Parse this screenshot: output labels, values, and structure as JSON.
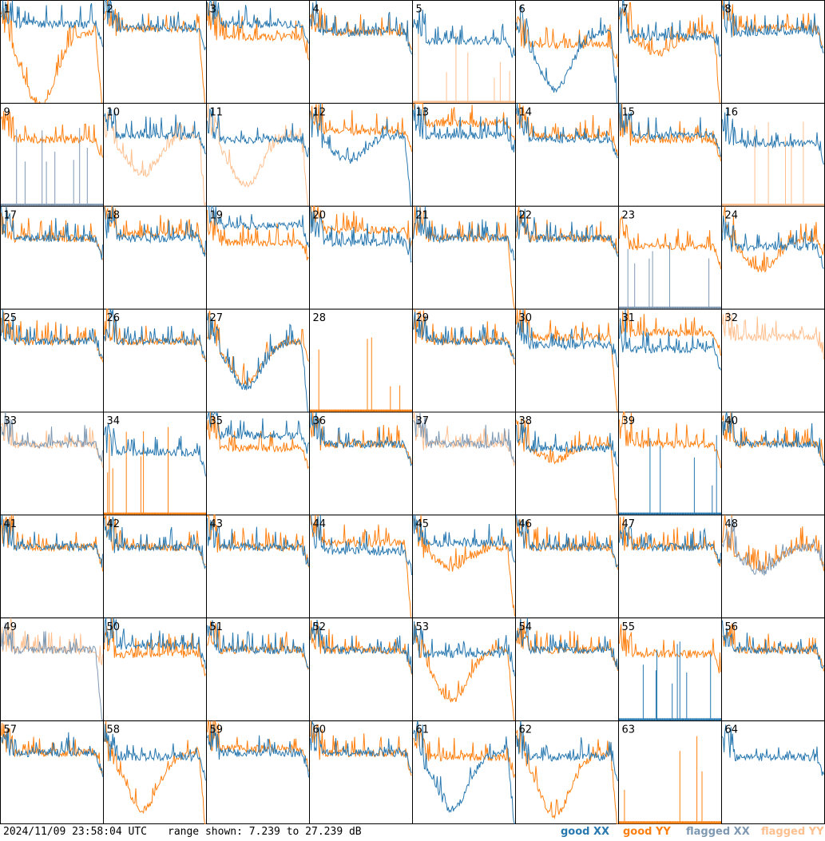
{
  "footer": {
    "timestamp": "2024/11/09 23:58:04 UTC",
    "range": "range shown: 7.239 to 27.239 dB"
  },
  "legend": [
    {
      "label": "good XX",
      "color": "#2878b0"
    },
    {
      "label": "good YY",
      "color": "#ff8010"
    },
    {
      "label": "flagged XX",
      "color": "#7f99b3"
    },
    {
      "label": "flagged YY",
      "color": "#ffc090"
    }
  ],
  "chart_data": {
    "type": "line",
    "grid": "8x8 small multiples",
    "ylim": [
      7.239,
      27.239
    ],
    "units": "dB",
    "panel_labels": [
      "1",
      "2",
      "3",
      "4",
      "5",
      "6",
      "7",
      "8",
      "9",
      "10",
      "11",
      "12",
      "13",
      "14",
      "15",
      "16",
      "17",
      "18",
      "19",
      "20",
      "21",
      "22",
      "23",
      "24",
      "25",
      "26",
      "27",
      "28",
      "29",
      "30",
      "31",
      "32",
      "33",
      "34",
      "35",
      "36",
      "37",
      "38",
      "39",
      "40",
      "41",
      "42",
      "43",
      "44",
      "45",
      "46",
      "47",
      "48",
      "49",
      "50",
      "51",
      "52",
      "53",
      "54",
      "55",
      "56",
      "57",
      "58",
      "59",
      "60",
      "61",
      "62",
      "63",
      "64"
    ],
    "panels": [
      {
        "label": "1",
        "xx": "band",
        "xxShift": 2,
        "yy": "bowl",
        "yyDepth": 0.72,
        "yyDrop": true
      },
      {
        "label": "2",
        "xx": "band",
        "xxShift": 1,
        "yy": "band",
        "yyShift": 1,
        "yyDrop": true
      },
      {
        "label": "3",
        "xx": "band",
        "xxShift": 2,
        "yy": "band",
        "yyShift": -1
      },
      {
        "label": "4",
        "xx": "band",
        "yy": "band"
      },
      {
        "label": "5",
        "xx": "band",
        "xxShift": -2,
        "yy": "spikes",
        "yyFlag": true
      },
      {
        "label": "6",
        "xx": "bowl",
        "xxDepth": 0.55,
        "xxDrop": true,
        "yy": "band",
        "yyShift": -3
      },
      {
        "label": "7",
        "xx": "band",
        "xxShift": -1,
        "yy": "bowl",
        "yyDepth": 0.2,
        "yyDrop": true
      },
      {
        "label": "8",
        "xx": "band",
        "yy": "band",
        "yyShift": 1
      },
      {
        "label": "9",
        "xx": "spikes",
        "xxFlag": true,
        "yy": "band",
        "yyShift": -1
      },
      {
        "label": "10",
        "xx": "band",
        "yy": "bowl",
        "yyDepth": 0.38,
        "yyFlag": true,
        "yyDrop": true
      },
      {
        "label": "11",
        "xx": "band",
        "xxShift": -1,
        "yy": "bowl",
        "yyDepth": 0.48,
        "yyFlag": true,
        "yyDrop": true
      },
      {
        "label": "12",
        "xx": "bowl",
        "xxDepth": 0.25,
        "xxDrop": true,
        "yy": "band",
        "yyShift": 1
      },
      {
        "label": "13",
        "xx": "band",
        "yy": "band",
        "yyShift": 3
      },
      {
        "label": "14",
        "xx": "band",
        "xxShift": -1,
        "yy": "band"
      },
      {
        "label": "15",
        "xx": "band",
        "yy": "band",
        "yyShift": -1
      },
      {
        "label": "16",
        "xx": "band",
        "xxShift": -2,
        "yy": "spikes",
        "yyFlag": true
      },
      {
        "label": "17",
        "xx": "band",
        "yy": "band"
      },
      {
        "label": "18",
        "xx": "band",
        "yy": "band",
        "yyShift": 1
      },
      {
        "label": "19",
        "xx": "band",
        "xxShift": 3,
        "yy": "band",
        "yyShift": -1
      },
      {
        "label": "20",
        "xx": "band",
        "xxShift": -1,
        "yy": "band",
        "yyShift": 2
      },
      {
        "label": "21",
        "xx": "band",
        "yy": "band",
        "yyDrop": true
      },
      {
        "label": "22",
        "xx": "band",
        "yy": "band"
      },
      {
        "label": "23",
        "xx": "spikes",
        "xxFlag": true,
        "yy": "band",
        "yyShift": -2
      },
      {
        "label": "24",
        "xx": "band",
        "xxShift": -2,
        "yy": "bowl",
        "yyDepth": 0.3
      },
      {
        "label": "25",
        "xx": "band",
        "yy": "band"
      },
      {
        "label": "26",
        "xx": "band",
        "yy": "band"
      },
      {
        "label": "27",
        "xx": "bowl",
        "xxDepth": 0.45,
        "xxDrop": true,
        "yy": "bowl",
        "yyDepth": 0.4
      },
      {
        "label": "28",
        "xx": "none",
        "yy": "spikes"
      },
      {
        "label": "29",
        "xx": "band",
        "yy": "band"
      },
      {
        "label": "30",
        "xx": "band",
        "xxShift": -1,
        "yy": "band",
        "yyShift": 1,
        "yyDrop": true
      },
      {
        "label": "31",
        "xx": "band",
        "xxShift": -2,
        "yy": "band",
        "yyShift": 2
      },
      {
        "label": "32",
        "xx": "none",
        "yy": "band",
        "yyFlag": true,
        "yyShift": 1
      },
      {
        "label": "33",
        "xx": "band",
        "xxFlag": true,
        "yy": "band",
        "yyFlag": true
      },
      {
        "label": "34",
        "xx": "band",
        "xxShift": -2,
        "yy": "spikes"
      },
      {
        "label": "35",
        "xx": "band",
        "xxShift": 2,
        "yy": "band",
        "yyShift": -1
      },
      {
        "label": "36",
        "xx": "band",
        "yy": "band"
      },
      {
        "label": "37",
        "xx": "band",
        "xxFlag": true,
        "yy": "band",
        "yyFlag": true
      },
      {
        "label": "38",
        "xx": "band",
        "xxShift": -1,
        "yy": "bowl",
        "yyDepth": 0.15,
        "yyDrop": true
      },
      {
        "label": "39",
        "xx": "spikes",
        "yy": "band"
      },
      {
        "label": "40",
        "xx": "band",
        "yy": "band"
      },
      {
        "label": "41",
        "xx": "band",
        "yy": "band"
      },
      {
        "label": "42",
        "xx": "band",
        "yy": "band"
      },
      {
        "label": "43",
        "xx": "band",
        "yy": "band"
      },
      {
        "label": "44",
        "xx": "band",
        "xxShift": -1,
        "yy": "band",
        "yyShift": 1,
        "yyDrop": true
      },
      {
        "label": "45",
        "xx": "band",
        "xxShift": 1,
        "yy": "bowl",
        "yyDepth": 0.2,
        "yyDrop": true
      },
      {
        "label": "46",
        "xx": "band",
        "yy": "band"
      },
      {
        "label": "47",
        "xx": "band",
        "yy": "band"
      },
      {
        "label": "48",
        "xx": "bowl",
        "xxDepth": 0.25,
        "xxFlag": true,
        "yy": "bowl",
        "yyDepth": 0.2
      },
      {
        "label": "49",
        "xx": "band",
        "xxFlag": true,
        "xxDrop": true,
        "yy": "band",
        "yyFlag": true
      },
      {
        "label": "50",
        "xx": "band",
        "xxShift": 1,
        "yy": "band",
        "yyShift": -1
      },
      {
        "label": "51",
        "xx": "band",
        "yy": "band"
      },
      {
        "label": "52",
        "xx": "band",
        "yy": "band"
      },
      {
        "label": "53",
        "xx": "band",
        "xxShift": -1,
        "yy": "bowl",
        "yyDepth": 0.5,
        "yyDrop": true
      },
      {
        "label": "54",
        "xx": "band",
        "yy": "band"
      },
      {
        "label": "55",
        "xx": "spikes",
        "yy": "band",
        "yyShift": -1
      },
      {
        "label": "56",
        "xx": "band",
        "yy": "band"
      },
      {
        "label": "57",
        "xx": "band",
        "yy": "band"
      },
      {
        "label": "58",
        "xx": "band",
        "xxShift": -1,
        "yy": "bowl",
        "yyDepth": 0.55,
        "yyDrop": true
      },
      {
        "label": "59",
        "xx": "band",
        "yy": "band",
        "yyShift": 1
      },
      {
        "label": "60",
        "xx": "band",
        "yy": "band"
      },
      {
        "label": "61",
        "xx": "bowl",
        "xxDepth": 0.55,
        "xxDrop": true,
        "yy": "band",
        "yyShift": -1
      },
      {
        "label": "62",
        "xx": "band",
        "xxShift": -1,
        "yy": "bowl",
        "yyDepth": 0.6,
        "yyDrop": true
      },
      {
        "label": "63",
        "xx": "none",
        "yy": "spikes"
      },
      {
        "label": "64",
        "xx": "band",
        "xxShift": -1,
        "yy": "none"
      }
    ]
  }
}
